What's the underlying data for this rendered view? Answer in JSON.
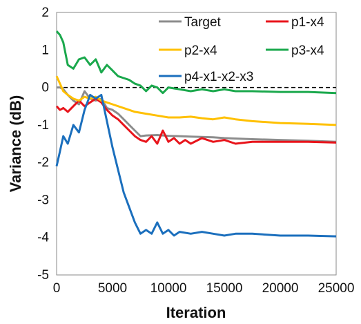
{
  "chart_data": {
    "type": "line",
    "xlabel": "Iteration",
    "ylabel": "Variance (dB)",
    "xlim": [
      0,
      25000
    ],
    "ylim": [
      -5,
      2
    ],
    "xticks": [
      0,
      5000,
      10000,
      15000,
      20000,
      25000
    ],
    "yticks": [
      -5,
      -4,
      -3,
      -2,
      -1,
      0,
      1,
      2
    ],
    "xtick_labels": [
      "0",
      "5000",
      "10000",
      "15000",
      "20000",
      "25000"
    ],
    "ytick_labels": [
      "-5",
      "-4",
      "-3",
      "-2",
      "-1",
      "0",
      "1",
      "2"
    ],
    "grid": false,
    "reference_line": {
      "y": 0,
      "style": "dashed"
    },
    "legend_position": "top",
    "series": [
      {
        "name": "Target",
        "color": "#8c8c8c",
        "x": [
          0,
          300,
          600,
          1000,
          1500,
          2000,
          2500,
          3000,
          3500,
          4000,
          4500,
          5000,
          5500,
          6000,
          6500,
          7000,
          7500,
          8000,
          9000,
          10000,
          11000,
          12000,
          13000,
          14000,
          15000,
          17500,
          20000,
          22500,
          25000
        ],
        "y": [
          0.0,
          0.0,
          -0.05,
          -0.2,
          -0.35,
          -0.45,
          -0.1,
          -0.3,
          -0.35,
          -0.3,
          -0.55,
          -0.6,
          -0.7,
          -0.85,
          -1.0,
          -1.15,
          -1.3,
          -1.28,
          -1.27,
          -1.29,
          -1.3,
          -1.31,
          -1.32,
          -1.33,
          -1.35,
          -1.38,
          -1.4,
          -1.42,
          -1.45
        ]
      },
      {
        "name": "p1-x4",
        "color": "#e8141b",
        "x": [
          0,
          300,
          600,
          1000,
          1500,
          2000,
          2500,
          3000,
          3500,
          4000,
          4500,
          5000,
          5500,
          6000,
          6500,
          7000,
          7500,
          8000,
          8500,
          9000,
          9500,
          10000,
          10500,
          11000,
          11500,
          12000,
          13000,
          14000,
          15000,
          16000,
          17500,
          20000,
          22500,
          25000
        ],
        "y": [
          -0.5,
          -0.6,
          -0.55,
          -0.65,
          -0.5,
          -0.35,
          -0.5,
          -0.4,
          -0.3,
          -0.4,
          -0.6,
          -0.75,
          -0.85,
          -1.0,
          -1.15,
          -1.3,
          -1.4,
          -1.45,
          -1.3,
          -1.5,
          -1.15,
          -1.45,
          -1.35,
          -1.5,
          -1.4,
          -1.5,
          -1.35,
          -1.45,
          -1.4,
          -1.5,
          -1.45,
          -1.45,
          -1.45,
          -1.47
        ]
      },
      {
        "name": "p2-x4",
        "color": "#ffc000",
        "x": [
          0,
          300,
          600,
          1000,
          1500,
          2000,
          2500,
          3000,
          3500,
          4000,
          4500,
          5000,
          6000,
          7000,
          8000,
          9000,
          10000,
          11000,
          12000,
          13000,
          14000,
          15000,
          16000,
          17500,
          20000,
          22500,
          25000
        ],
        "y": [
          0.3,
          0.1,
          -0.1,
          -0.2,
          -0.3,
          -0.35,
          -0.25,
          -0.3,
          -0.25,
          -0.35,
          -0.4,
          -0.45,
          -0.55,
          -0.65,
          -0.7,
          -0.75,
          -0.8,
          -0.8,
          -0.78,
          -0.82,
          -0.85,
          -0.8,
          -0.85,
          -0.9,
          -0.95,
          -0.97,
          -1.0
        ]
      },
      {
        "name": "p3-x4",
        "color": "#1aa84c",
        "x": [
          0,
          300,
          600,
          1000,
          1500,
          2000,
          2500,
          3000,
          3500,
          4000,
          4500,
          5000,
          5500,
          6000,
          6500,
          7000,
          7500,
          8000,
          8500,
          9000,
          9500,
          10000,
          11000,
          12000,
          13000,
          14000,
          15000,
          16000,
          17500,
          20000,
          22500,
          25000
        ],
        "y": [
          1.5,
          1.4,
          1.2,
          0.6,
          0.5,
          0.75,
          0.8,
          0.6,
          0.75,
          0.4,
          0.6,
          0.45,
          0.3,
          0.25,
          0.2,
          0.1,
          0.05,
          -0.1,
          0.05,
          0.0,
          -0.15,
          0.0,
          -0.05,
          -0.1,
          -0.05,
          -0.1,
          -0.05,
          -0.1,
          -0.1,
          -0.12,
          -0.12,
          -0.15
        ]
      },
      {
        "name": "p4-x1-x2-x3",
        "color": "#1b6fbd",
        "x": [
          0,
          300,
          600,
          1000,
          1500,
          2000,
          2500,
          3000,
          3500,
          4000,
          4500,
          5000,
          5500,
          6000,
          6500,
          7000,
          7500,
          8000,
          8500,
          9000,
          9500,
          10000,
          10500,
          11000,
          12000,
          13000,
          14000,
          15000,
          16000,
          17500,
          20000,
          22500,
          25000
        ],
        "y": [
          -2.1,
          -1.7,
          -1.3,
          -1.5,
          -1.0,
          -1.2,
          -0.6,
          -0.2,
          -0.3,
          -0.2,
          -0.9,
          -1.6,
          -2.2,
          -2.8,
          -3.2,
          -3.6,
          -3.9,
          -3.8,
          -3.9,
          -3.6,
          -3.9,
          -3.8,
          -3.95,
          -3.85,
          -3.9,
          -3.85,
          -3.9,
          -3.95,
          -3.9,
          -3.9,
          -3.95,
          -3.95,
          -3.97
        ]
      }
    ]
  }
}
